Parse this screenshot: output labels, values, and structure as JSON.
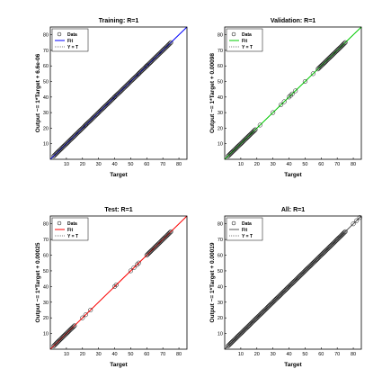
{
  "chart_data": [
    {
      "type": "scatter",
      "title": "Training: R=1",
      "xlabel": "Target",
      "ylabel": "Output ~= 1*Target + 6.6e-06",
      "xlim": [
        0,
        85
      ],
      "ylim": [
        0,
        85
      ],
      "xticks": [
        10,
        20,
        30,
        40,
        50,
        60,
        70,
        80
      ],
      "yticks": [
        10,
        20,
        30,
        40,
        50,
        60,
        70,
        80
      ],
      "grid": false,
      "legend_placement": "top-left",
      "legend": [
        "Data",
        "Fit",
        "Y = T"
      ],
      "fit_color": "#0000ff",
      "points": {
        "dense_ranges": [
          [
            2,
            75
          ]
        ],
        "extra": [
          22,
          40,
          55,
          60
        ]
      },
      "fit": {
        "slope": 1,
        "intercept": 6.6e-06
      }
    },
    {
      "type": "scatter",
      "title": "Validation: R=1",
      "xlabel": "Target",
      "ylabel": "Output ~= 1*Target + 0.00098",
      "xlim": [
        0,
        85
      ],
      "ylim": [
        0,
        85
      ],
      "xticks": [
        10,
        20,
        30,
        40,
        50,
        60,
        70,
        80
      ],
      "yticks": [
        10,
        20,
        30,
        40,
        50,
        60,
        70,
        80
      ],
      "grid": false,
      "legend_placement": "top-left",
      "legend": [
        "Data",
        "Fit",
        "Y = T"
      ],
      "fit_color": "#00cc00",
      "points": {
        "dense_ranges": [
          [
            2,
            19
          ],
          [
            58,
            75
          ]
        ],
        "extra": [
          22,
          30,
          35,
          37,
          40,
          41,
          42,
          44,
          50,
          55
        ]
      },
      "fit": {
        "slope": 1,
        "intercept": 0.00098
      }
    },
    {
      "type": "scatter",
      "title": "Test: R=1",
      "xlabel": "Target",
      "ylabel": "Output ~= 1*Target + 0.00025",
      "xlim": [
        0,
        85
      ],
      "ylim": [
        0,
        85
      ],
      "xticks": [
        10,
        20,
        30,
        40,
        50,
        60,
        70,
        80
      ],
      "yticks": [
        10,
        20,
        30,
        40,
        50,
        60,
        70,
        80
      ],
      "grid": false,
      "legend_placement": "top-left",
      "legend": [
        "Data",
        "Fit",
        "Y = T"
      ],
      "fit_color": "#ff0000",
      "points": {
        "dense_ranges": [
          [
            2,
            15
          ],
          [
            60,
            75
          ]
        ],
        "extra": [
          20,
          22,
          25,
          40,
          41,
          50,
          52,
          54,
          55
        ]
      },
      "fit": {
        "slope": 1,
        "intercept": 0.00025
      }
    },
    {
      "type": "scatter",
      "title": "All: R=1",
      "xlabel": "Target",
      "ylabel": "Output ~= 1*Target + 0.00019",
      "xlim": [
        0,
        85
      ],
      "ylim": [
        0,
        85
      ],
      "xticks": [
        10,
        20,
        30,
        40,
        50,
        60,
        70,
        80
      ],
      "yticks": [
        10,
        20,
        30,
        40,
        50,
        60,
        70,
        80
      ],
      "grid": false,
      "legend_placement": "top-left",
      "legend": [
        "Data",
        "Fit",
        "Y = T"
      ],
      "fit_color": "#555555",
      "points": {
        "dense_ranges": [
          [
            2,
            75
          ]
        ],
        "extra": [
          80,
          82,
          84
        ]
      },
      "fit": {
        "slope": 1,
        "intercept": 0.00019
      }
    }
  ]
}
